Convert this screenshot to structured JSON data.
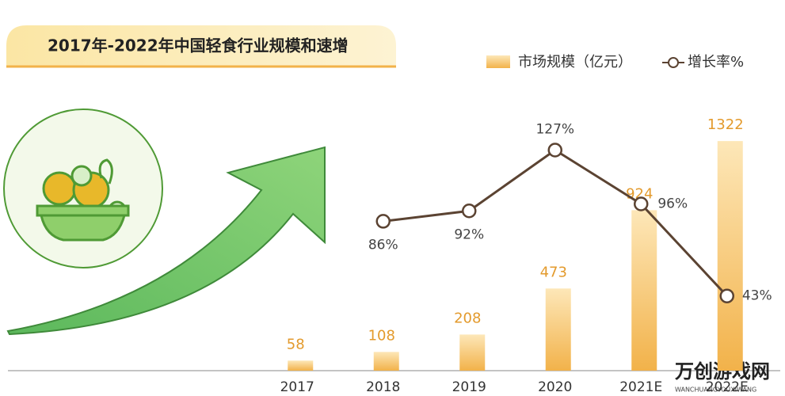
{
  "chart_data": {
    "type": "bar",
    "title": "2017年-2022年中国轻食行业规模和速增",
    "categories": [
      "2017",
      "2018",
      "2019",
      "2020",
      "2021E",
      "2022E"
    ],
    "series": [
      {
        "name": "市场规模（亿元）",
        "type": "bar",
        "color": "#f2b24a",
        "values": [
          58,
          108,
          208,
          473,
          924,
          1322
        ]
      },
      {
        "name": "增长率%",
        "type": "line",
        "axis": "y2",
        "color": "#5b4332",
        "values": [
          null,
          86,
          92,
          127,
          96,
          43
        ],
        "value_labels": [
          null,
          "86%",
          "92%",
          "127%",
          "96%",
          "43%"
        ]
      }
    ],
    "ylim": [
      0,
      1400
    ],
    "y2lim": [
      0,
      140
    ],
    "grid": false,
    "legend": "top-right"
  },
  "watermark": {
    "text": "万创游戏网",
    "subtext": "WANCHUANGYOUXIWANG"
  }
}
